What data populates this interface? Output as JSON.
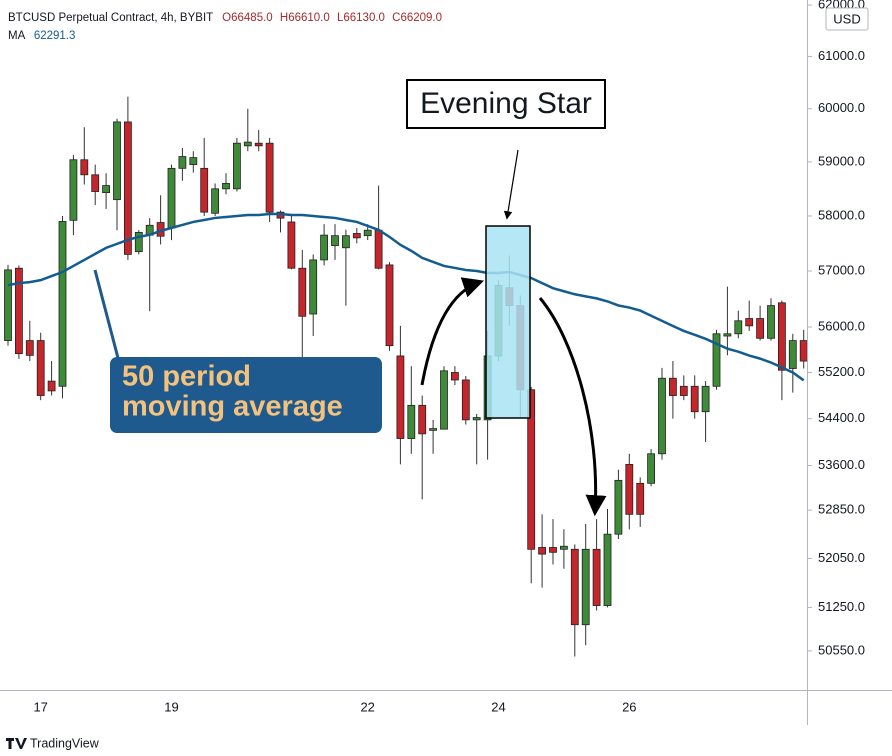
{
  "chart_data": {
    "type": "candlestick",
    "title": "BTCUSD Perpetual Contract, 4h, BYBIT",
    "ohlc_labels": [
      "O66485.0",
      "H66610.0",
      "L66130.0",
      "C66209.0"
    ],
    "indicator_name": "MA",
    "indicator_value": "62291.3",
    "currency": "USD",
    "categories": [
      null,
      null,
      null,
      "17",
      null,
      null,
      null,
      null,
      null,
      null,
      null,
      null,
      null,
      null,
      null,
      "19",
      null,
      null,
      null,
      null,
      null,
      null,
      null,
      null,
      null,
      null,
      null,
      null,
      null,
      null,
      null,
      null,
      null,
      "22",
      null,
      null,
      null,
      null,
      null,
      null,
      null,
      null,
      null,
      null,
      null,
      "24",
      null,
      null,
      null,
      null,
      null,
      null,
      null,
      null,
      null,
      null,
      null,
      "26",
      null,
      null,
      null,
      null,
      null,
      null,
      null,
      null,
      null,
      null,
      null,
      null,
      null,
      null,
      null,
      null
    ],
    "open": [
      55760,
      57050,
      55760,
      55760,
      55050,
      54960,
      57920,
      59040,
      58760,
      58430,
      58300,
      59750,
      57350,
      57650,
      57880,
      57780,
      58880,
      58950,
      58880,
      58050,
      58500,
      58500,
      59300,
      59350,
      59350,
      58070,
      57890,
      57050,
      56230,
      57200,
      57460,
      57420,
      57680,
      57640,
      57740,
      57110,
      55490,
      54060,
      54630,
      54200,
      54220,
      55200,
      55070,
      54380,
      54380,
      55490,
      56700,
      56380,
      54900,
      52230,
      52230,
      52200,
      52200,
      50970,
      52200,
      51280,
      52450,
      53620,
      53300,
      53300,
      53800,
      55100,
      54960,
      54960,
      54520,
      54960,
      55840,
      55880,
      56150,
      56150,
      55800,
      56430,
      55270,
      55760
    ],
    "high": [
      57110,
      57100,
      56110,
      55900,
      55400,
      58000,
      59130,
      59650,
      58950,
      58790,
      59810,
      60230,
      57740,
      57960,
      58380,
      58950,
      59260,
      59200,
      59450,
      58600,
      58790,
      59450,
      60000,
      59600,
      59450,
      58100,
      58000,
      57380,
      57300,
      57850,
      57850,
      57750,
      57780,
      57850,
      58560,
      57160,
      56020,
      55310,
      54800,
      54380,
      55310,
      55310,
      55140,
      54480,
      55930,
      56830,
      57280,
      56560,
      54950,
      52780,
      52700,
      52530,
      52280,
      52620,
      52700,
      52870,
      53530,
      53800,
      53400,
      53880,
      55280,
      55400,
      55150,
      55150,
      55050,
      55950,
      56720,
      56290,
      56470,
      56380,
      56510,
      56470,
      55880,
      55950
    ],
    "low": [
      55670,
      55440,
      55400,
      54720,
      54800,
      54750,
      57650,
      58580,
      58200,
      58130,
      57740,
      57200,
      57300,
      56280,
      57480,
      57560,
      58650,
      58800,
      58000,
      58000,
      58400,
      58450,
      59200,
      59200,
      57890,
      57700,
      57030,
      55440,
      55840,
      57100,
      57200,
      56380,
      57500,
      57560,
      57030,
      55580,
      53620,
      53800,
      53030,
      53800,
      54220,
      54980,
      54300,
      53620,
      53700,
      55400,
      56020,
      54420,
      51640,
      51570,
      51950,
      51880,
      50460,
      50640,
      51200,
      51250,
      52370,
      52530,
      52570,
      53250,
      53700,
      54400,
      54720,
      54400,
      54000,
      54900,
      55500,
      55800,
      55930,
      55760,
      55760,
      54720,
      54850,
      55270
    ],
    "close": [
      57020,
      55530,
      55500,
      54800,
      54880,
      57900,
      59040,
      58760,
      58450,
      58560,
      59750,
      57300,
      57700,
      57830,
      57630,
      58880,
      59100,
      59080,
      58070,
      58500,
      58600,
      59350,
      59370,
      59300,
      58070,
      57960,
      57050,
      56190,
      57200,
      57650,
      57640,
      57640,
      57600,
      57740,
      57050,
      55670,
      54060,
      54630,
      54140,
      54230,
      55230,
      55070,
      54380,
      54420,
      55490,
      56740,
      56380,
      54900,
      52200,
      52120,
      52150,
      52250,
      50970,
      52200,
      51280,
      52450,
      53350,
      52780,
      52780,
      53800,
      55100,
      54800,
      54800,
      54520,
      54960,
      55880,
      55880,
      56110,
      56020,
      55800,
      56380,
      55240,
      55760,
      55400
    ],
    "up_color": "#3f8a38",
    "down_color": "#c4262b",
    "ma_values": [
      56745,
      56782,
      56800,
      56836,
      56909,
      56982,
      57091,
      57200,
      57309,
      57418,
      57491,
      57564,
      57618,
      57655,
      57727,
      57782,
      57836,
      57891,
      57927,
      57964,
      57982,
      58000,
      58018,
      58018,
      58036,
      58036,
      58018,
      58018,
      58000,
      57982,
      57964,
      57927,
      57891,
      57818,
      57745,
      57618,
      57473,
      57364,
      57236,
      57164,
      57091,
      57055,
      57018,
      57000,
      56964,
      56964,
      56982,
      56927,
      56873,
      56782,
      56691,
      56636,
      56582,
      56545,
      56509,
      56455,
      56382,
      56345,
      56291,
      56200,
      56109,
      56018,
      55930,
      55861,
      55791,
      55704,
      55617,
      55565,
      55496,
      55443,
      55374,
      55287,
      55200,
      55064
    ],
    "ma_color": "#135c92",
    "log_scale": true,
    "ylim": [
      49929,
      62098
    ],
    "yticks": [
      {
        "value": 62000,
        "label": "62000.0"
      },
      {
        "value": 61000,
        "label": "61000.0"
      },
      {
        "value": 60000,
        "label": "60000.0"
      },
      {
        "value": 59000,
        "label": "59000.0"
      },
      {
        "value": 58000,
        "label": "58000.0"
      },
      {
        "value": 57000,
        "label": "57000.0"
      },
      {
        "value": 56000,
        "label": "56000.0"
      },
      {
        "value": 55200,
        "label": "55200.0"
      },
      {
        "value": 54400,
        "label": "54400.0"
      },
      {
        "value": 53600,
        "label": "53600.0"
      },
      {
        "value": 52850,
        "label": "52850.0"
      },
      {
        "value": 52050,
        "label": "52050.0"
      },
      {
        "value": 51250,
        "label": "51250.0"
      },
      {
        "value": 50550,
        "label": "50550.0"
      }
    ],
    "annotations": {
      "pattern": "Evening Star",
      "moving_average": [
        "50 period",
        "moving average"
      ]
    },
    "footer": "TradingView"
  }
}
